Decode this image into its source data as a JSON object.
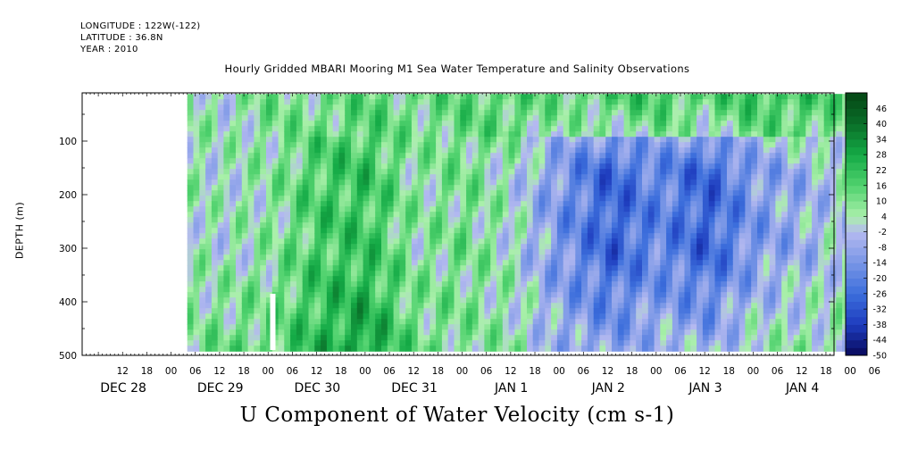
{
  "header": {
    "longitude": "LONGITUDE : 122W(-122)",
    "latitude": "LATITUDE : 36.8N",
    "year": "YEAR : 2010"
  },
  "chart_data": {
    "type": "heatmap",
    "title": "Hourly Gridded MBARI Mooring M1 Sea Water Temperature and Salinity Observations",
    "xlabel": "U Component of Water Velocity (cm s-1)",
    "ylabel": "DEPTH (m)",
    "ylim": [
      500,
      10
    ],
    "yticks": [
      100,
      200,
      300,
      400,
      500
    ],
    "x_hour_ticks": [
      "12",
      "18",
      "00",
      "06",
      "12",
      "18",
      "00",
      "06",
      "12",
      "18",
      "00",
      "06",
      "12",
      "18",
      "00",
      "06",
      "12",
      "18",
      "00",
      "06",
      "12",
      "18",
      "00",
      "06",
      "12",
      "18",
      "00",
      "06",
      "12",
      "18",
      "00",
      "06"
    ],
    "x_day_labels": [
      "DEC 28",
      "DEC 29",
      "DEC 30",
      "DEC 31",
      "JAN  1",
      "JAN  2",
      "JAN  3",
      "JAN  4"
    ],
    "colorbar": {
      "labels": [
        46,
        40,
        34,
        28,
        22,
        16,
        10,
        4,
        -2,
        -8,
        -14,
        -20,
        -26,
        -32,
        -38,
        -44,
        -50
      ],
      "range": [
        -50,
        52
      ]
    },
    "data_start": "DEC 28 16:00",
    "field_pattern_by_hour": [
      {
        "hour": 16,
        "shallow": 8,
        "mid": 4,
        "deep": 8
      },
      {
        "hour": 24,
        "shallow": 2,
        "mid": 2,
        "deep": 12
      },
      {
        "hour": 36,
        "shallow": 10,
        "mid": 6,
        "deep": 14
      },
      {
        "hour": 48,
        "shallow": 8,
        "mid": 18,
        "deep": 24
      },
      {
        "hour": 60,
        "shallow": 14,
        "mid": 20,
        "deep": 30
      },
      {
        "hour": 72,
        "shallow": 10,
        "mid": 6,
        "deep": 12
      },
      {
        "hour": 84,
        "shallow": 14,
        "mid": 10,
        "deep": 8
      },
      {
        "hour": 96,
        "shallow": 16,
        "mid": 2,
        "deep": 6
      },
      {
        "hour": 108,
        "shallow": 12,
        "mid": -14,
        "deep": -6
      },
      {
        "hour": 120,
        "shallow": 18,
        "mid": -28,
        "deep": -10
      },
      {
        "hour": 132,
        "shallow": 20,
        "mid": -18,
        "deep": -4
      },
      {
        "hour": 144,
        "shallow": 16,
        "mid": -28,
        "deep": -6
      },
      {
        "hour": 156,
        "shallow": 22,
        "mid": -12,
        "deep": 4
      },
      {
        "hour": 168,
        "shallow": 20,
        "mid": -6,
        "deep": 6
      },
      {
        "hour": 180,
        "shallow": 12,
        "mid": 2,
        "deep": 4
      }
    ]
  }
}
